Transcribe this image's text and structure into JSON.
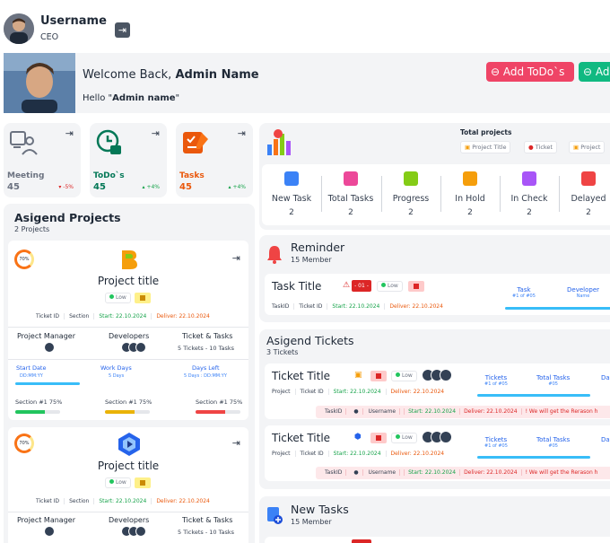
{
  "user": {
    "name": "Username",
    "role": "CEO"
  },
  "welcome": {
    "prefix": "Welcome Back, ",
    "admin_name": "Admin Name",
    "hello_prefix": "Hello \"",
    "hello_name": "Admin name",
    "hello_suffix": "\""
  },
  "buttons": {
    "add_todo": "Add ToDo`s",
    "add_other": "Ad"
  },
  "stats": [
    {
      "name": "Meeting",
      "value": "45",
      "change": "▾ -5%",
      "color": "#6b7280",
      "change_color": "#dc2626"
    },
    {
      "name": "ToDo`s",
      "value": "45",
      "change": "▴ +4%",
      "color": "#047857",
      "change_color": "#16a34a"
    },
    {
      "name": "Tasks",
      "value": "45",
      "change": "▴ +4%",
      "color": "#ea580c",
      "change_color": "#16a34a"
    }
  ],
  "assigned_projects": {
    "title": "Asigend Projects",
    "count": "2 Projects",
    "cards": [
      {
        "progress": "70%",
        "title": "Project title",
        "priority": "Low",
        "meta": {
          "ticket": "Ticket ID",
          "section": "Section",
          "start": "Start: 22.10.2024",
          "deliver": "Deliver: 22.10.2024"
        },
        "headers": {
          "pm": "Project Manager",
          "dev": "Developers",
          "tt": "Ticket & Tasks"
        },
        "tt_value": "5 Tickets - 10 Tasks",
        "start_date": "Start Date",
        "start_fmt": "DD:MM:YY",
        "work_days": "Work Days",
        "work_val": "5 Days",
        "days_left": "Days Left",
        "days_left_val": "5 Days : DD:MM:YY",
        "sections": [
          "Section #1 75%",
          "Section #1 75%",
          "Section #1 75%"
        ]
      },
      {
        "progress": "70%",
        "title": "Project title",
        "priority": "Low",
        "meta": {
          "ticket": "Ticket ID",
          "section": "Section",
          "start": "Start: 22.10.2024",
          "deliver": "Deliver: 22.10.2024"
        },
        "headers": {
          "pm": "Project Manager",
          "dev": "Developers",
          "tt": "Ticket & Tasks"
        },
        "tt_value": "5 Tickets - 10 Tasks"
      }
    ]
  },
  "total_projects": {
    "label": "Total projects",
    "chips": [
      "Project Title",
      "Ticket",
      "Project"
    ]
  },
  "task_stats": [
    {
      "label": "New Task",
      "value": "2",
      "color": "#3b82f6"
    },
    {
      "label": "Total Tasks",
      "value": "2",
      "color": "#ec4899"
    },
    {
      "label": "Progress",
      "value": "2",
      "color": "#84cc16"
    },
    {
      "label": "In Hold",
      "value": "2",
      "color": "#f59e0b"
    },
    {
      "label": "In Check",
      "value": "2",
      "color": "#a855f7"
    },
    {
      "label": "Delayed",
      "value": "2",
      "color": "#ef4444"
    }
  ],
  "reminder": {
    "title": "Reminder",
    "sub": "15 Member",
    "task_title": "Task Title",
    "badge": "- 01 -",
    "priority": "Low",
    "meta": {
      "task": "TaskID",
      "ticket": "Ticket ID",
      "start": "Start: 22.10.2024",
      "deliver": "Deliver: 22.10.2024"
    },
    "col1": "Task",
    "col1_sub": "#1 of #05",
    "col2": "Developer",
    "col2_sub": "Name"
  },
  "assigned_tickets": {
    "title": "Asigend Tickets",
    "sub": "3 Tickets",
    "items": [
      {
        "title": "Ticket Title",
        "priority": "Low",
        "meta": {
          "project": "Project",
          "ticket": "Ticket ID",
          "start": "Start: 22.10.2024",
          "deliver": "Deliver: 22.10.2024"
        },
        "col1": "Tickets",
        "col1_sub": "#1 of #05",
        "col2": "Total Tasks",
        "col2_sub": "#05",
        "col3": "Da",
        "bottom": {
          "task": "TaskID",
          "user": "Username",
          "start": "Start: 22.10.2024",
          "deliver": "Deliver: 22.10.2024",
          "err": "! We will get the Rerason h"
        }
      },
      {
        "title": "Ticket Title",
        "priority": "Low",
        "meta": {
          "project": "Project",
          "ticket": "Ticket ID",
          "start": "Start: 22.10.2024",
          "deliver": "Deliver: 22.10.2024"
        },
        "col1": "Tickets",
        "col1_sub": "#1 of #05",
        "col2": "Total Tasks",
        "col2_sub": "#05",
        "col3": "Da",
        "bottom": {
          "task": "TaskID",
          "user": "Username",
          "start": "Start: 22.10.2024",
          "deliver": "Deliver: 22.10.2024",
          "err": "! We will get the Rerason h"
        }
      }
    ]
  },
  "new_tasks": {
    "title": "New Tasks",
    "sub": "15 Member"
  },
  "colors": {
    "accent_pink": "#ef4466",
    "accent_green": "#10b981",
    "progress_blue": "#38bdf8"
  }
}
